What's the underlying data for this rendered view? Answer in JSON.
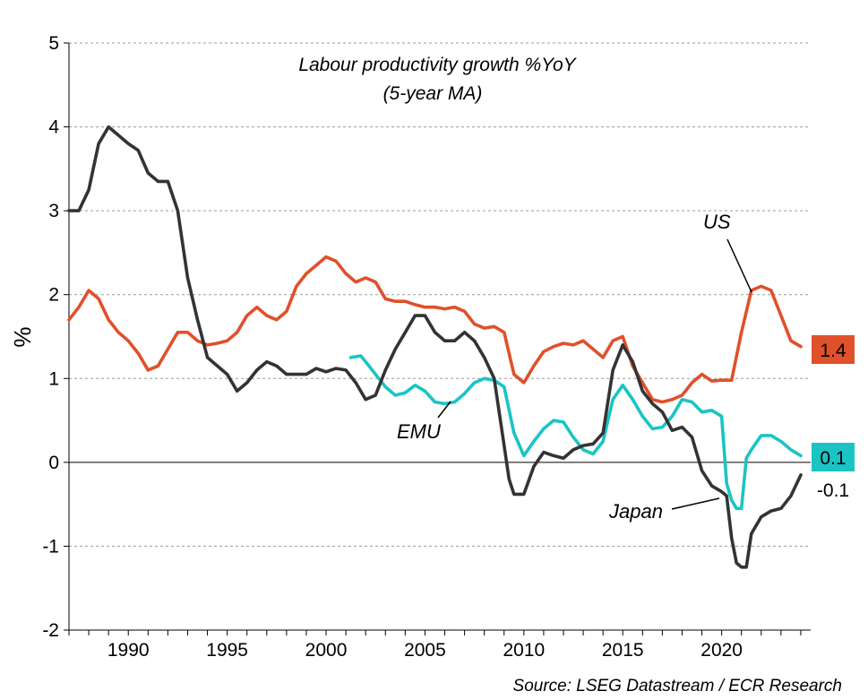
{
  "chart_data": {
    "type": "line",
    "title": "Labour productivity growth %YoY",
    "subtitle": "(5-year MA)",
    "ylabel": "%",
    "source": "Source: LSEG Datastream / ECR Research",
    "ylim": [
      -2,
      5
    ],
    "xlim": [
      1987,
      2024.5
    ],
    "yticks": [
      "5",
      "4",
      "3",
      "2",
      "1",
      "0",
      "-1",
      "-2"
    ],
    "xticks": [
      "1990",
      "1995",
      "2000",
      "2005",
      "2010",
      "2015",
      "2020"
    ],
    "grid": true,
    "colors": {
      "US": "#e0502a",
      "EMU": "#1bc4c4",
      "Japan": "#333333"
    },
    "series": [
      {
        "name": "US",
        "end_label": "1.4",
        "x": [
          1987.0,
          1987.5,
          1988.0,
          1988.5,
          1989.0,
          1989.5,
          1990.0,
          1990.5,
          1991.0,
          1991.5,
          1992.0,
          1992.5,
          1993.0,
          1993.5,
          1994.0,
          1994.5,
          1995.0,
          1995.5,
          1996.0,
          1996.5,
          1997.0,
          1997.5,
          1998.0,
          1998.5,
          1999.0,
          1999.5,
          2000.0,
          2000.5,
          2001.0,
          2001.5,
          2002.0,
          2002.5,
          2003.0,
          2003.5,
          2004.0,
          2004.5,
          2005.0,
          2005.5,
          2006.0,
          2006.5,
          2007.0,
          2007.5,
          2008.0,
          2008.5,
          2009.0,
          2009.5,
          2010.0,
          2010.5,
          2011.0,
          2011.5,
          2012.0,
          2012.5,
          2013.0,
          2013.5,
          2014.0,
          2014.5,
          2015.0,
          2015.5,
          2016.0,
          2016.5,
          2017.0,
          2017.5,
          2018.0,
          2018.5,
          2019.0,
          2019.5,
          2020.0,
          2020.5,
          2021.0,
          2021.5,
          2022.0,
          2022.5,
          2023.0,
          2023.5,
          2024.0
        ],
        "values": [
          1.7,
          1.85,
          2.05,
          1.95,
          1.7,
          1.55,
          1.45,
          1.3,
          1.1,
          1.15,
          1.35,
          1.55,
          1.55,
          1.45,
          1.4,
          1.42,
          1.45,
          1.55,
          1.75,
          1.85,
          1.75,
          1.7,
          1.8,
          2.1,
          2.25,
          2.35,
          2.45,
          2.4,
          2.25,
          2.15,
          2.2,
          2.15,
          1.95,
          1.92,
          1.92,
          1.88,
          1.85,
          1.85,
          1.83,
          1.85,
          1.8,
          1.65,
          1.6,
          1.62,
          1.55,
          1.05,
          0.95,
          1.15,
          1.32,
          1.38,
          1.42,
          1.4,
          1.45,
          1.35,
          1.25,
          1.45,
          1.5,
          1.15,
          0.95,
          0.75,
          0.72,
          0.75,
          0.8,
          0.95,
          1.05,
          0.97,
          0.98,
          0.98,
          1.55,
          2.05,
          2.1,
          2.05,
          1.75,
          1.45,
          1.38
        ]
      },
      {
        "name": "EMU",
        "end_label": "0.1",
        "x": [
          2001.25,
          2001.75,
          2002.0,
          2002.5,
          2003.0,
          2003.5,
          2004.0,
          2004.5,
          2005.0,
          2005.5,
          2006.0,
          2006.5,
          2007.0,
          2007.5,
          2008.0,
          2008.5,
          2009.0,
          2009.5,
          2010.0,
          2010.5,
          2011.0,
          2011.5,
          2012.0,
          2012.5,
          2013.0,
          2013.5,
          2014.0,
          2014.5,
          2015.0,
          2015.5,
          2016.0,
          2016.5,
          2017.0,
          2017.5,
          2018.0,
          2018.5,
          2019.0,
          2019.5,
          2020.0,
          2020.25,
          2020.5,
          2020.75,
          2021.0,
          2021.25,
          2021.5,
          2022.0,
          2022.5,
          2023.0,
          2023.5,
          2024.0
        ],
        "values": [
          1.25,
          1.27,
          1.2,
          1.05,
          0.9,
          0.8,
          0.83,
          0.92,
          0.85,
          0.72,
          0.7,
          0.72,
          0.82,
          0.95,
          1.0,
          0.98,
          0.9,
          0.35,
          0.08,
          0.25,
          0.4,
          0.5,
          0.48,
          0.3,
          0.15,
          0.1,
          0.25,
          0.75,
          0.92,
          0.75,
          0.55,
          0.4,
          0.42,
          0.55,
          0.75,
          0.72,
          0.6,
          0.62,
          0.55,
          -0.25,
          -0.45,
          -0.55,
          -0.55,
          0.05,
          0.15,
          0.32,
          0.32,
          0.25,
          0.15,
          0.08
        ]
      },
      {
        "name": "Japan",
        "end_label": "-0.1",
        "x": [
          1987.0,
          1987.5,
          1988.0,
          1988.5,
          1989.0,
          1989.5,
          1990.0,
          1990.5,
          1991.0,
          1991.5,
          1992.0,
          1992.5,
          1993.0,
          1993.5,
          1994.0,
          1994.5,
          1995.0,
          1995.5,
          1996.0,
          1996.5,
          1997.0,
          1997.5,
          1998.0,
          1998.5,
          1999.0,
          1999.5,
          2000.0,
          2000.5,
          2001.0,
          2001.5,
          2002.0,
          2002.5,
          2003.0,
          2003.5,
          2004.0,
          2004.5,
          2005.0,
          2005.5,
          2006.0,
          2006.5,
          2007.0,
          2007.5,
          2008.0,
          2008.5,
          2009.0,
          2009.25,
          2009.5,
          2010.0,
          2010.5,
          2011.0,
          2011.5,
          2012.0,
          2012.5,
          2013.0,
          2013.5,
          2014.0,
          2014.5,
          2015.0,
          2015.5,
          2016.0,
          2016.5,
          2017.0,
          2017.5,
          2018.0,
          2018.5,
          2019.0,
          2019.5,
          2020.0,
          2020.25,
          2020.5,
          2020.75,
          2021.0,
          2021.25,
          2021.5,
          2022.0,
          2022.5,
          2023.0,
          2023.5,
          2024.0
        ],
        "values": [
          3.0,
          3.0,
          3.25,
          3.8,
          4.0,
          3.9,
          3.8,
          3.72,
          3.45,
          3.35,
          3.35,
          3.0,
          2.2,
          1.7,
          1.25,
          1.15,
          1.05,
          0.85,
          0.95,
          1.1,
          1.2,
          1.15,
          1.05,
          1.05,
          1.05,
          1.12,
          1.08,
          1.12,
          1.1,
          0.95,
          0.75,
          0.8,
          1.1,
          1.35,
          1.55,
          1.75,
          1.75,
          1.55,
          1.45,
          1.45,
          1.55,
          1.45,
          1.25,
          1.0,
          0.2,
          -0.2,
          -0.38,
          -0.38,
          -0.05,
          0.12,
          0.08,
          0.05,
          0.15,
          0.2,
          0.22,
          0.35,
          1.1,
          1.4,
          1.2,
          0.85,
          0.7,
          0.6,
          0.38,
          0.42,
          0.3,
          -0.1,
          -0.28,
          -0.35,
          -0.4,
          -0.9,
          -1.2,
          -1.25,
          -1.25,
          -0.85,
          -0.65,
          -0.58,
          -0.55,
          -0.4,
          -0.15
        ]
      }
    ]
  }
}
